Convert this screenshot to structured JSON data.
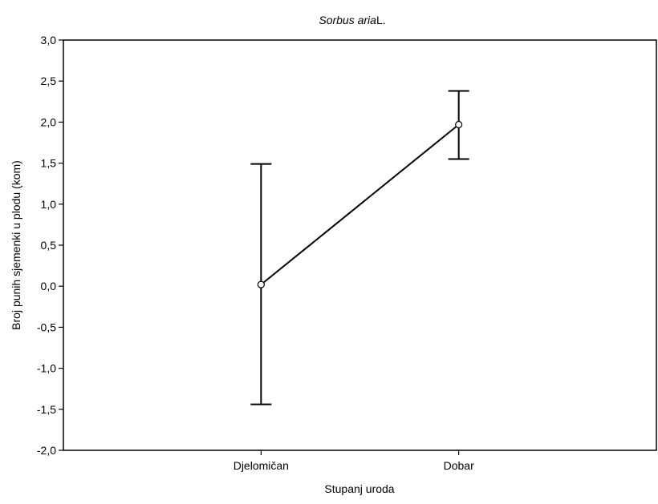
{
  "chart_data": {
    "type": "line",
    "title_italic": "Sorbus aria",
    "title_suffix": "L.",
    "xlabel": "Stupanj uroda",
    "ylabel": "Broj punih sjemenki u plodu (kom)",
    "categories": [
      "Djelomičan",
      "Dobar"
    ],
    "series": [
      {
        "values": [
          0.02,
          1.97
        ],
        "error_lower": [
          -1.44,
          1.55
        ],
        "error_upper": [
          1.49,
          2.38
        ]
      }
    ],
    "ylim": [
      -2.0,
      3.0
    ],
    "yticks": [
      -2.0,
      -1.5,
      -1.0,
      -0.5,
      0.0,
      0.5,
      1.0,
      1.5,
      2.0,
      2.5,
      3.0
    ],
    "ytick_labels": [
      "-2,0",
      "-1,5",
      "-1,0",
      "-0,5",
      "0,0",
      "0,5",
      "1,0",
      "1,5",
      "2,0",
      "2,5",
      "3,0"
    ],
    "grid": false,
    "legend": "none",
    "colors": {
      "line": "#000000",
      "marker_fill": "#ffffff",
      "background": "#ffffff"
    }
  }
}
